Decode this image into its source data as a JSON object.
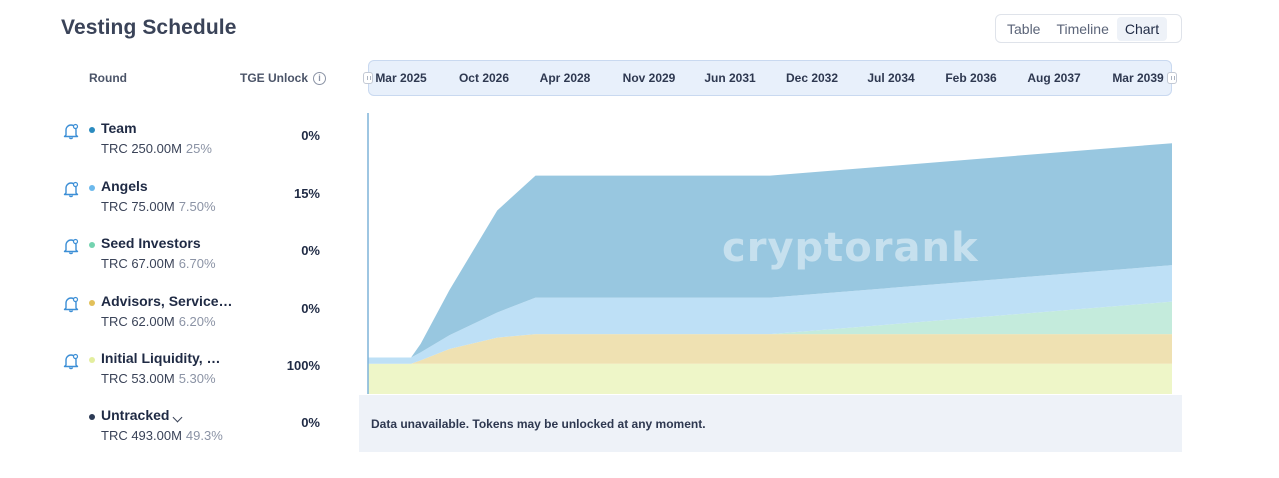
{
  "header": {
    "title": "Vesting Schedule"
  },
  "view_tabs": [
    {
      "label": "Table",
      "active": false
    },
    {
      "label": "Timeline",
      "active": false
    },
    {
      "label": "Chart",
      "active": true
    }
  ],
  "columns": {
    "round": "Round",
    "tge_unlock": "TGE Unlock",
    "info_icon": "i"
  },
  "rounds": [
    {
      "name": "Team",
      "amount": "TRC 250.00M",
      "pct": "25%",
      "tge": "0%",
      "color": "#2b8bbf",
      "bell": true
    },
    {
      "name": "Angels",
      "amount": "TRC 75.00M",
      "pct": "7.50%",
      "tge": "15%",
      "color": "#6cb9ec",
      "bell": true
    },
    {
      "name": "Seed Investors",
      "amount": "TRC 67.00M",
      "pct": "6.70%",
      "tge": "0%",
      "color": "#74d3b0",
      "bell": true
    },
    {
      "name": "Advisors, Service…",
      "amount": "TRC 62.00M",
      "pct": "6.20%",
      "tge": "0%",
      "color": "#e2c05a",
      "bell": true
    },
    {
      "name": "Initial Liquidity, …",
      "amount": "TRC 53.00M",
      "pct": "5.30%",
      "tge": "100%",
      "color": "#e3ee9e",
      "bell": true
    },
    {
      "name": "Untracked",
      "amount": "TRC 493.00M",
      "pct": "49.3%",
      "tge": "0%",
      "color": "#2c3a55",
      "bell": false
    }
  ],
  "chart_data": {
    "type": "area",
    "stacked": true,
    "x_tick_labels": [
      "Mar 2025",
      "Oct 2026",
      "Apr 2028",
      "Nov 2029",
      "Jun 2031",
      "Dec 2032",
      "Jul 2034",
      "Feb 2036",
      "Aug 2037",
      "Mar 2039"
    ],
    "x_range": [
      "2025-03",
      "2039-03"
    ],
    "y_unit": "TRC M",
    "y_range": [
      0,
      507
    ],
    "x": [
      "2025-03",
      "2025-12",
      "2026-02",
      "2026-08",
      "2027-06",
      "2028-02",
      "2032-03",
      "2039-03"
    ],
    "series": [
      {
        "name": "Initial Liquidity, …",
        "color": "#eef6c8",
        "values": [
          53,
          53,
          53,
          53,
          53,
          53,
          53,
          53
        ]
      },
      {
        "name": "Advisors, Service…",
        "color": "#efe1b2",
        "values": [
          0,
          0,
          6,
          26,
          46,
          52,
          52,
          52
        ]
      },
      {
        "name": "Seed Investors",
        "color": "#c4ebdc",
        "values": [
          0,
          0,
          0,
          0,
          0,
          0,
          0,
          57
        ]
      },
      {
        "name": "Angels",
        "color": "#bee0f6",
        "values": [
          11,
          11,
          14,
          24,
          44,
          64,
          64,
          64
        ]
      },
      {
        "name": "Team",
        "color": "#98c7e0",
        "values": [
          0,
          0,
          15,
          79,
          179,
          214,
          214,
          214
        ]
      }
    ]
  },
  "watermark": "cryptorank",
  "notice": "Data unavailable. Tokens may be unlocked at any moment."
}
